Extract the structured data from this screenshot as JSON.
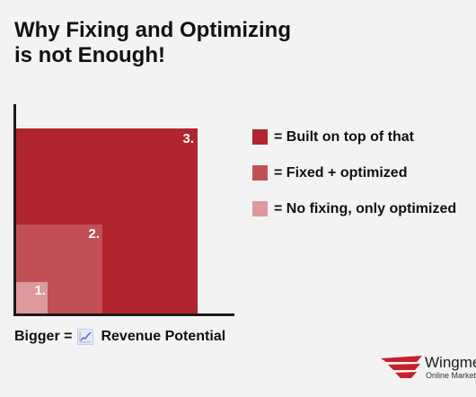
{
  "title": {
    "line1": "Why Fixing and Optimizing",
    "line2": "is not Enough!"
  },
  "boxes": [
    {
      "label": "1.",
      "color": "#dc9a9c"
    },
    {
      "label": "2.",
      "color": "#c24f55"
    },
    {
      "label": "3.",
      "color": "#b0252e"
    }
  ],
  "legend": [
    {
      "text": "= Built on top of that",
      "color": "#b0252e"
    },
    {
      "text": "= Fixed + optimized",
      "color": "#c24f55"
    },
    {
      "text": "= No fixing, only optimized",
      "color": "#dc9a9c"
    }
  ],
  "caption": {
    "prefix": "Bigger =",
    "icon": "chart-trend-icon",
    "suffix": "Revenue Potential"
  },
  "logo": {
    "name": "Wingmen",
    "tagline": "Online Marketing",
    "color": "#c8202a"
  }
}
